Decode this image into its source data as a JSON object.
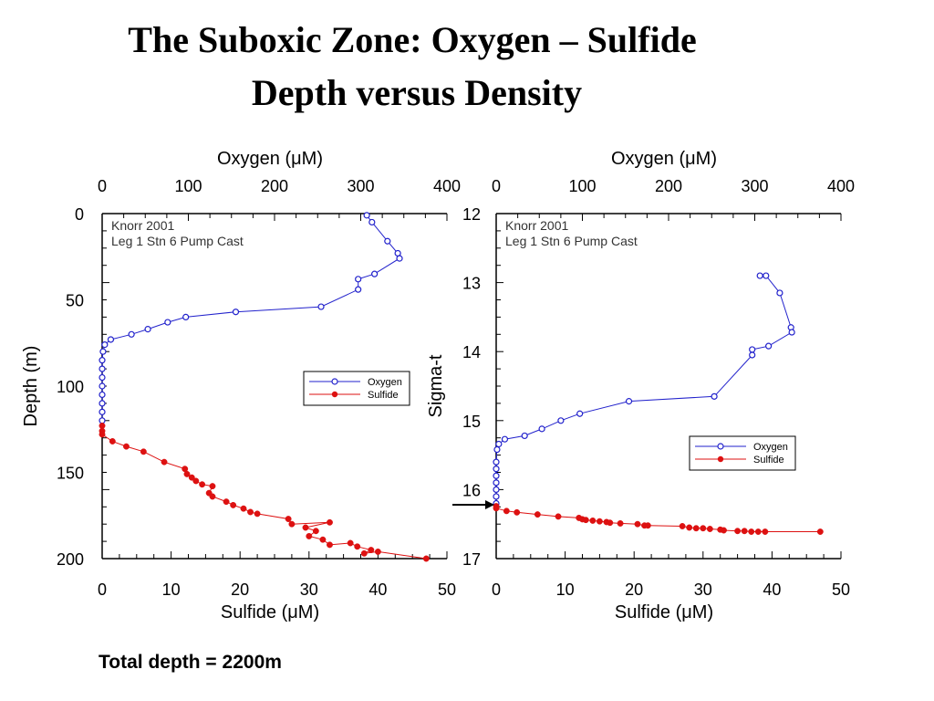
{
  "page": {
    "title_line1": "The Suboxic Zone: Oxygen – Sulfide",
    "title_line2": "Depth versus Density",
    "footnote": "Total depth = 2200m"
  },
  "colors": {
    "oxygen": "#2222cc",
    "sulfide": "#dd1111",
    "axis": "#000000"
  },
  "chart_data": [
    {
      "type": "line",
      "top_axis_label": "Oxygen (μM)",
      "bottom_axis_label": "Sulfide (μM)",
      "ylabel": "Depth (m)",
      "top_range": [
        0,
        400
      ],
      "bottom_range": [
        0,
        50
      ],
      "y_range": [
        0,
        200
      ],
      "y_inverted": true,
      "top_ticks": [
        0,
        100,
        200,
        300,
        400
      ],
      "bottom_ticks": [
        0,
        10,
        20,
        30,
        40,
        50
      ],
      "y_ticks": [
        0,
        50,
        100,
        150,
        200
      ],
      "annotation": [
        "Knorr 2001",
        "Leg 1 Stn 6 Pump Cast"
      ],
      "legend": [
        "Oxygen",
        "Sulfide"
      ],
      "series": [
        {
          "name": "Oxygen",
          "axis": "top",
          "marker": "open-circle",
          "points": [
            [
              307,
              1
            ],
            [
              313,
              5
            ],
            [
              331,
              16
            ],
            [
              343,
              23
            ],
            [
              345,
              26
            ],
            [
              316,
              35
            ],
            [
              297,
              38
            ],
            [
              297,
              44
            ],
            [
              254,
              54
            ],
            [
              155,
              57
            ],
            [
              97,
              60
            ],
            [
              76,
              63
            ],
            [
              53,
              67
            ],
            [
              34,
              70
            ],
            [
              10,
              73
            ],
            [
              3,
              76
            ],
            [
              1,
              80
            ],
            [
              0,
              85
            ],
            [
              0,
              90
            ],
            [
              0,
              95
            ],
            [
              0,
              100
            ],
            [
              0,
              105
            ],
            [
              0,
              110
            ],
            [
              0,
              115
            ],
            [
              0,
              120
            ]
          ]
        },
        {
          "name": "Sulfide",
          "axis": "bottom",
          "marker": "filled-circle",
          "points": [
            [
              0,
              123
            ],
            [
              0,
              126
            ],
            [
              0,
              128
            ],
            [
              1.5,
              132
            ],
            [
              3.5,
              135
            ],
            [
              6,
              138
            ],
            [
              9,
              144
            ],
            [
              12,
              148
            ],
            [
              12.3,
              151
            ],
            [
              13,
              153
            ],
            [
              13.6,
              155
            ],
            [
              14.5,
              157
            ],
            [
              16,
              158
            ],
            [
              15.5,
              162
            ],
            [
              16,
              164
            ],
            [
              18,
              167
            ],
            [
              19,
              169
            ],
            [
              20.5,
              171
            ],
            [
              21.5,
              173
            ],
            [
              22.5,
              174
            ],
            [
              27,
              177
            ],
            [
              27.5,
              180
            ],
            [
              33,
              179
            ],
            [
              29.5,
              182
            ],
            [
              31,
              184
            ],
            [
              30,
              187
            ],
            [
              32,
              189
            ],
            [
              33,
              192
            ],
            [
              36,
              191
            ],
            [
              37,
              193
            ],
            [
              39,
              195
            ],
            [
              38,
              197
            ],
            [
              40,
              196
            ],
            [
              47,
              200
            ]
          ]
        }
      ]
    },
    {
      "type": "line",
      "top_axis_label": "Oxygen (μM)",
      "bottom_axis_label": "Sulfide (μM)",
      "ylabel": "Sigma-t",
      "top_range": [
        0,
        400
      ],
      "bottom_range": [
        0,
        50
      ],
      "y_range": [
        12,
        17
      ],
      "y_inverted": true,
      "top_ticks": [
        0,
        100,
        200,
        300,
        400
      ],
      "bottom_ticks": [
        0,
        10,
        20,
        30,
        40,
        50
      ],
      "y_ticks": [
        12,
        13,
        14,
        15,
        16,
        17
      ],
      "annotation": [
        "Knorr 2001",
        "Leg 1 Stn 6 Pump Cast"
      ],
      "legend": [
        "Oxygen",
        "Sulfide"
      ],
      "arrow_at_sigma": 16.22,
      "series": [
        {
          "name": "Oxygen",
          "axis": "top",
          "marker": "open-circle",
          "points": [
            [
              306,
              12.9
            ],
            [
              313,
              12.9
            ],
            [
              329,
              13.15
            ],
            [
              342,
              13.65
            ],
            [
              343,
              13.72
            ],
            [
              316,
              13.92
            ],
            [
              297,
              13.97
            ],
            [
              297,
              14.05
            ],
            [
              253,
              14.65
            ],
            [
              154,
              14.72
            ],
            [
              97,
              14.9
            ],
            [
              75,
              15.0
            ],
            [
              53,
              15.12
            ],
            [
              33,
              15.22
            ],
            [
              10,
              15.27
            ],
            [
              3,
              15.34
            ],
            [
              1,
              15.42
            ],
            [
              0,
              15.6
            ],
            [
              0,
              15.7
            ],
            [
              0,
              15.8
            ],
            [
              0,
              15.9
            ],
            [
              0,
              16.0
            ],
            [
              0,
              16.1
            ],
            [
              0,
              16.2
            ]
          ]
        },
        {
          "name": "Sulfide",
          "axis": "bottom",
          "marker": "filled-circle",
          "points": [
            [
              0,
              16.24
            ],
            [
              0,
              16.27
            ],
            [
              1.5,
              16.31
            ],
            [
              3,
              16.33
            ],
            [
              6,
              16.36
            ],
            [
              9,
              16.39
            ],
            [
              12,
              16.41
            ],
            [
              12.5,
              16.43
            ],
            [
              13,
              16.44
            ],
            [
              14,
              16.45
            ],
            [
              15,
              16.46
            ],
            [
              16,
              16.47
            ],
            [
              16.5,
              16.48
            ],
            [
              18,
              16.49
            ],
            [
              20.5,
              16.5
            ],
            [
              21.5,
              16.52
            ],
            [
              22,
              16.52
            ],
            [
              27,
              16.53
            ],
            [
              28,
              16.55
            ],
            [
              29,
              16.56
            ],
            [
              30,
              16.56
            ],
            [
              31,
              16.57
            ],
            [
              32.5,
              16.58
            ],
            [
              33,
              16.59
            ],
            [
              35,
              16.6
            ],
            [
              36,
              16.6
            ],
            [
              37,
              16.61
            ],
            [
              38,
              16.61
            ],
            [
              39,
              16.61
            ],
            [
              47,
              16.61
            ]
          ]
        }
      ]
    }
  ]
}
